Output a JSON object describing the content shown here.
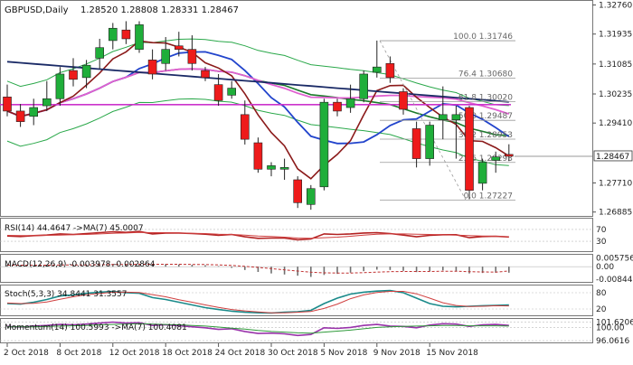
{
  "chart_data": [
    {
      "type": "candlestick",
      "panel": "price",
      "header": {
        "symbol": "GBPUSD,Daily",
        "ohlc": "1.28520 1.28808 1.28331 1.28467"
      },
      "current_price": 1.28467,
      "current_price_label": "1.28467",
      "ylim": [
        1.268,
        1.3285
      ],
      "y_ticks": [
        {
          "v": 1.3276,
          "label": "1.32760"
        },
        {
          "v": 1.31935,
          "label": "1.31935"
        },
        {
          "v": 1.31085,
          "label": "1.31085"
        },
        {
          "v": 1.30235,
          "label": "1.30235"
        },
        {
          "v": 1.2941,
          "label": "1.29410"
        },
        {
          "v": 1.2771,
          "label": "1.27710"
        },
        {
          "v": 1.26885,
          "label": "1.26885"
        }
      ],
      "fib_levels": [
        {
          "label": "100.0 1.31746",
          "value": 1.31746
        },
        {
          "label": "76.4 1.30680",
          "value": 1.3068
        },
        {
          "label": "61.8 1.30020",
          "value": 1.3002
        },
        {
          "label": "50.0 1.29487",
          "value": 1.29487
        },
        {
          "label": "38.2 1.28953",
          "value": 1.28953
        },
        {
          "label": "23.6 1.28293",
          "value": 1.28293
        },
        {
          "label": "0.0 1.27227",
          "value": 1.27227
        }
      ],
      "x_labels": [
        {
          "label": "2 Oct 2018",
          "index": 0
        },
        {
          "label": "8 Oct 2018",
          "index": 4
        },
        {
          "label": "12 Oct 2018",
          "index": 8
        },
        {
          "label": "18 Oct 2018",
          "index": 12
        },
        {
          "label": "24 Oct 2018",
          "index": 16
        },
        {
          "label": "30 Oct 2018",
          "index": 20
        },
        {
          "label": "5 Nov 2018",
          "index": 24
        },
        {
          "label": "9 Nov 2018",
          "index": 28
        },
        {
          "label": "15 Nov 2018",
          "index": 32
        }
      ],
      "candles": [
        {
          "o": 1.3015,
          "h": 1.305,
          "l": 1.296,
          "c": 1.2975
        },
        {
          "o": 1.2975,
          "h": 1.2995,
          "l": 1.293,
          "c": 1.2945
        },
        {
          "o": 1.296,
          "h": 1.301,
          "l": 1.2935,
          "c": 1.2985
        },
        {
          "o": 1.299,
          "h": 1.306,
          "l": 1.2975,
          "c": 1.301
        },
        {
          "o": 1.301,
          "h": 1.31,
          "l": 1.299,
          "c": 1.308
        },
        {
          "o": 1.309,
          "h": 1.3125,
          "l": 1.3045,
          "c": 1.3065
        },
        {
          "o": 1.307,
          "h": 1.312,
          "l": 1.304,
          "c": 1.3105
        },
        {
          "o": 1.3125,
          "h": 1.318,
          "l": 1.3095,
          "c": 1.3155
        },
        {
          "o": 1.3175,
          "h": 1.3225,
          "l": 1.315,
          "c": 1.321
        },
        {
          "o": 1.3205,
          "h": 1.323,
          "l": 1.3165,
          "c": 1.318
        },
        {
          "o": 1.315,
          "h": 1.323,
          "l": 1.314,
          "c": 1.322
        },
        {
          "o": 1.312,
          "h": 1.315,
          "l": 1.3065,
          "c": 1.308
        },
        {
          "o": 1.311,
          "h": 1.3185,
          "l": 1.309,
          "c": 1.315
        },
        {
          "o": 1.316,
          "h": 1.32,
          "l": 1.313,
          "c": 1.315
        },
        {
          "o": 1.315,
          "h": 1.319,
          "l": 1.309,
          "c": 1.311
        },
        {
          "o": 1.309,
          "h": 1.31,
          "l": 1.306,
          "c": 1.307
        },
        {
          "o": 1.305,
          "h": 1.308,
          "l": 1.299,
          "c": 1.3005
        },
        {
          "o": 1.302,
          "h": 1.306,
          "l": 1.301,
          "c": 1.304
        },
        {
          "o": 1.2965,
          "h": 1.3005,
          "l": 1.288,
          "c": 1.2895
        },
        {
          "o": 1.2885,
          "h": 1.29,
          "l": 1.28,
          "c": 1.281
        },
        {
          "o": 1.281,
          "h": 1.283,
          "l": 1.279,
          "c": 1.282
        },
        {
          "o": 1.281,
          "h": 1.284,
          "l": 1.278,
          "c": 1.2815
        },
        {
          "o": 1.278,
          "h": 1.279,
          "l": 1.27,
          "c": 1.2715
        },
        {
          "o": 1.271,
          "h": 1.2765,
          "l": 1.2695,
          "c": 1.2755
        },
        {
          "o": 1.276,
          "h": 1.301,
          "l": 1.275,
          "c": 1.3
        },
        {
          "o": 1.3,
          "h": 1.301,
          "l": 1.296,
          "c": 1.2975
        },
        {
          "o": 1.2985,
          "h": 1.305,
          "l": 1.297,
          "c": 1.301
        },
        {
          "o": 1.301,
          "h": 1.309,
          "l": 1.3,
          "c": 1.308
        },
        {
          "o": 1.3085,
          "h": 1.3175,
          "l": 1.307,
          "c": 1.31
        },
        {
          "o": 1.311,
          "h": 1.313,
          "l": 1.3055,
          "c": 1.307
        },
        {
          "o": 1.303,
          "h": 1.304,
          "l": 1.2965,
          "c": 1.298
        },
        {
          "o": 1.2925,
          "h": 1.2945,
          "l": 1.2815,
          "c": 1.284
        },
        {
          "o": 1.284,
          "h": 1.2945,
          "l": 1.282,
          "c": 1.2935
        },
        {
          "o": 1.295,
          "h": 1.3045,
          "l": 1.2895,
          "c": 1.2965
        },
        {
          "o": 1.295,
          "h": 1.299,
          "l": 1.284,
          "c": 1.2965
        },
        {
          "o": 1.2985,
          "h": 1.299,
          "l": 1.2725,
          "c": 1.275
        },
        {
          "o": 1.277,
          "h": 1.284,
          "l": 1.275,
          "c": 1.283
        },
        {
          "o": 1.2835,
          "h": 1.286,
          "l": 1.28,
          "c": 1.2845
        },
        {
          "o": 1.2852,
          "h": 1.28808,
          "l": 1.28331,
          "c": 1.28467
        }
      ],
      "colors": {
        "bull": "#1fae3a",
        "bear": "#ee1b1b",
        "fib": "#999999",
        "text": "#333333"
      }
    },
    {
      "type": "line",
      "panel": "rsi",
      "label": "RSI(14) 44.4647 ->MA(7) 45.0007",
      "ylim": [
        0,
        100
      ],
      "ticks": [
        {
          "v": 70,
          "label": "70"
        },
        {
          "v": 30,
          "label": "30"
        }
      ],
      "series": [
        {
          "values": [
            48,
            46,
            49,
            51,
            55,
            53,
            56,
            59,
            62,
            60,
            63,
            55,
            58,
            58,
            56,
            54,
            50,
            53,
            45,
            40,
            41,
            41,
            35,
            38,
            55,
            53,
            55,
            58,
            59,
            56,
            51,
            45,
            50,
            52,
            52,
            42,
            46,
            47,
            44.5
          ],
          "color": "#b32222"
        },
        {
          "values": [
            50,
            49,
            49,
            50,
            51,
            52,
            53,
            55,
            57,
            58,
            60,
            59,
            59,
            58,
            57,
            56,
            54,
            53,
            51,
            48,
            46,
            44,
            41,
            40,
            42,
            44,
            47,
            51,
            54,
            55,
            55,
            54,
            53,
            52,
            51,
            49,
            48,
            47,
            45
          ],
          "color": "#d04040"
        }
      ]
    },
    {
      "type": "bar",
      "panel": "macd",
      "label": "MACD(12,26,9) -0.003978 -0.002864",
      "ylim": [
        -0.0095,
        0.0067
      ],
      "ticks": [
        {
          "v": 0.005756,
          "label": "0.005756"
        },
        {
          "v": 0.0,
          "label": "0.00"
        },
        {
          "v": -0.008448,
          "label": "-0.008448"
        }
      ],
      "bars": [
        0.0012,
        0.0011,
        0.001,
        0.001,
        0.0012,
        0.0013,
        0.0014,
        0.0016,
        0.0018,
        0.0019,
        0.002,
        0.0018,
        0.0017,
        0.0015,
        0.0013,
        0.001,
        0.0004,
        -0.0008,
        -0.0022,
        -0.0035,
        -0.0045,
        -0.0052,
        -0.006,
        -0.0068,
        -0.0055,
        -0.0048,
        -0.004,
        -0.003,
        -0.002,
        -0.0022,
        -0.0028,
        -0.0036,
        -0.003,
        -0.0025,
        -0.003,
        -0.0045,
        -0.0042,
        -0.004,
        -0.004
      ],
      "signal": [
        0.001,
        0.001,
        0.001,
        0.001,
        0.0011,
        0.0011,
        0.0012,
        0.0013,
        0.0014,
        0.0015,
        0.0016,
        0.0016,
        0.0016,
        0.0016,
        0.0015,
        0.0014,
        0.0012,
        0.0008,
        0.0002,
        -0.0005,
        -0.0013,
        -0.0021,
        -0.0029,
        -0.0037,
        -0.0041,
        -0.0042,
        -0.0042,
        -0.004,
        -0.0036,
        -0.0033,
        -0.0032,
        -0.0032,
        -0.0032,
        -0.003,
        -0.003,
        -0.0033,
        -0.0035,
        -0.0036,
        -0.0029
      ],
      "colors": {
        "bars": "#707070",
        "signal": "#c03030"
      }
    },
    {
      "type": "line",
      "panel": "stoch",
      "label": "Stoch(5,3,3) 34.8441 31.3557",
      "ylim": [
        0,
        100
      ],
      "ticks": [
        {
          "v": 80,
          "label": "80"
        },
        {
          "v": 20,
          "label": "20"
        }
      ],
      "series": [
        {
          "values": [
            40,
            38,
            45,
            55,
            68,
            72,
            78,
            82,
            85,
            80,
            78,
            62,
            55,
            45,
            35,
            25,
            18,
            12,
            8,
            6,
            5,
            8,
            10,
            15,
            40,
            60,
            75,
            82,
            86,
            88,
            80,
            60,
            40,
            30,
            28,
            30,
            32,
            33,
            34.8
          ],
          "color": "#1a8a8a"
        },
        {
          "values": [
            42,
            40,
            41,
            46,
            56,
            65,
            73,
            77,
            82,
            82,
            81,
            73,
            65,
            54,
            45,
            35,
            26,
            18,
            13,
            9,
            6,
            6,
            8,
            11,
            22,
            38,
            58,
            72,
            81,
            85,
            85,
            76,
            60,
            43,
            33,
            29,
            30,
            32,
            31.4
          ],
          "color": "#d04040"
        }
      ]
    },
    {
      "type": "line",
      "panel": "momentum",
      "label": "Momentum(14) 100.5993 ->MA(7) 100.4081",
      "ylim": [
        95.8,
        102.0
      ],
      "ticks": [
        {
          "v": 101.6206,
          "label": "101.6206"
        },
        {
          "v": 100.0,
          "label": "100.00"
        },
        {
          "v": 96.0616,
          "label": "96.0616"
        }
      ],
      "series": [
        {
          "values": [
            100.3,
            100.1,
            100.4,
            100.6,
            100.9,
            100.8,
            101.0,
            101.3,
            101.6,
            101.3,
            101.4,
            100.6,
            100.8,
            100.5,
            100.2,
            99.9,
            99.4,
            99.6,
            98.8,
            98.2,
            98.3,
            98.1,
            97.6,
            97.9,
            99.9,
            99.7,
            100.0,
            100.6,
            100.9,
            100.4,
            100.3,
            99.9,
            100.7,
            101.1,
            101.0,
            100.3,
            100.8,
            100.9,
            100.6
          ],
          "color": "#9933aa"
        },
        {
          "values": [
            100.2,
            100.2,
            100.2,
            100.3,
            100.4,
            100.5,
            100.6,
            100.8,
            100.9,
            101.0,
            101.1,
            101.0,
            100.9,
            100.8,
            100.6,
            100.4,
            100.1,
            99.8,
            99.5,
            99.1,
            98.8,
            98.6,
            98.4,
            98.3,
            98.6,
            98.9,
            99.2,
            99.6,
            100.0,
            100.2,
            100.3,
            100.4,
            100.5,
            100.6,
            100.6,
            100.5,
            100.5,
            100.5,
            100.4
          ],
          "color": "#2f9a3a"
        }
      ]
    }
  ]
}
